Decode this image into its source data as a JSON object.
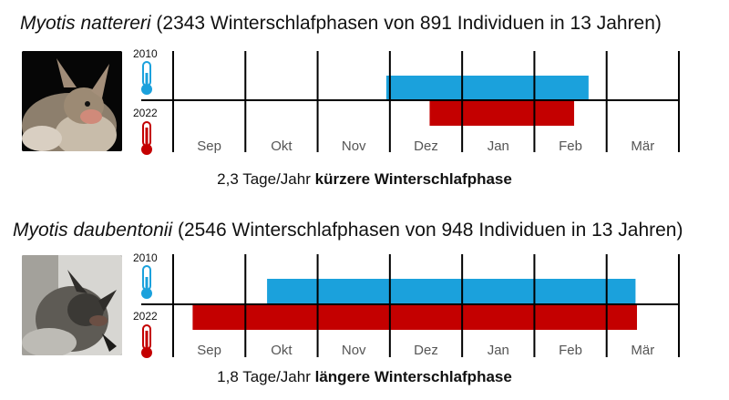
{
  "colors": {
    "year_2010": "#1ba1dc",
    "year_2022": "#c40000",
    "axis": "#000000"
  },
  "panels": [
    {
      "species": "Myotis nattereri",
      "stats": "(2343 Winterschlafphasen von 891 Individuen in 13 Jahren)",
      "photo_icon": "bat-photo-natterer",
      "year_top": "2010",
      "year_bottom": "2022",
      "caption_value": "2,3 Tage/Jahr",
      "caption_emph": "kürzere Winterschlafphase"
    },
    {
      "species": "Myotis daubentonii",
      "stats": "(2546 Winterschlafphasen von 948 Individuen in 13 Jahren)",
      "photo_icon": "bat-photo-daubenton",
      "year_top": "2010",
      "year_bottom": "2022",
      "caption_value": "1,8 Tage/Jahr",
      "caption_emph": "längere Winterschlafphase"
    }
  ],
  "chart_data": [
    {
      "type": "bar",
      "orientation": "horizontal-range",
      "title": "Myotis nattereri (2343 Winterschlafphasen von 891 Individuen in 13 Jahren)",
      "categories": [
        "Sep",
        "Okt",
        "Nov",
        "Dez",
        "Jan",
        "Feb",
        "Mär"
      ],
      "x_unit": "months from 1 Sep",
      "xlim": [
        0,
        7
      ],
      "series": [
        {
          "name": "2010",
          "start": 2.95,
          "end": 5.75,
          "color": "#1ba1dc"
        },
        {
          "name": "2022",
          "start": 3.55,
          "end": 5.55,
          "color": "#c40000"
        }
      ]
    },
    {
      "type": "bar",
      "orientation": "horizontal-range",
      "title": "Myotis daubentonii (2546 Winterschlafphasen von 948 Individuen in 13 Jahren)",
      "categories": [
        "Sep",
        "Okt",
        "Nov",
        "Dez",
        "Jan",
        "Feb",
        "Mär"
      ],
      "x_unit": "months from 1 Sep",
      "xlim": [
        0,
        7
      ],
      "series": [
        {
          "name": "2010",
          "start": 1.3,
          "end": 6.4,
          "color": "#1ba1dc"
        },
        {
          "name": "2022",
          "start": 0.27,
          "end": 6.42,
          "color": "#c40000"
        }
      ]
    }
  ]
}
